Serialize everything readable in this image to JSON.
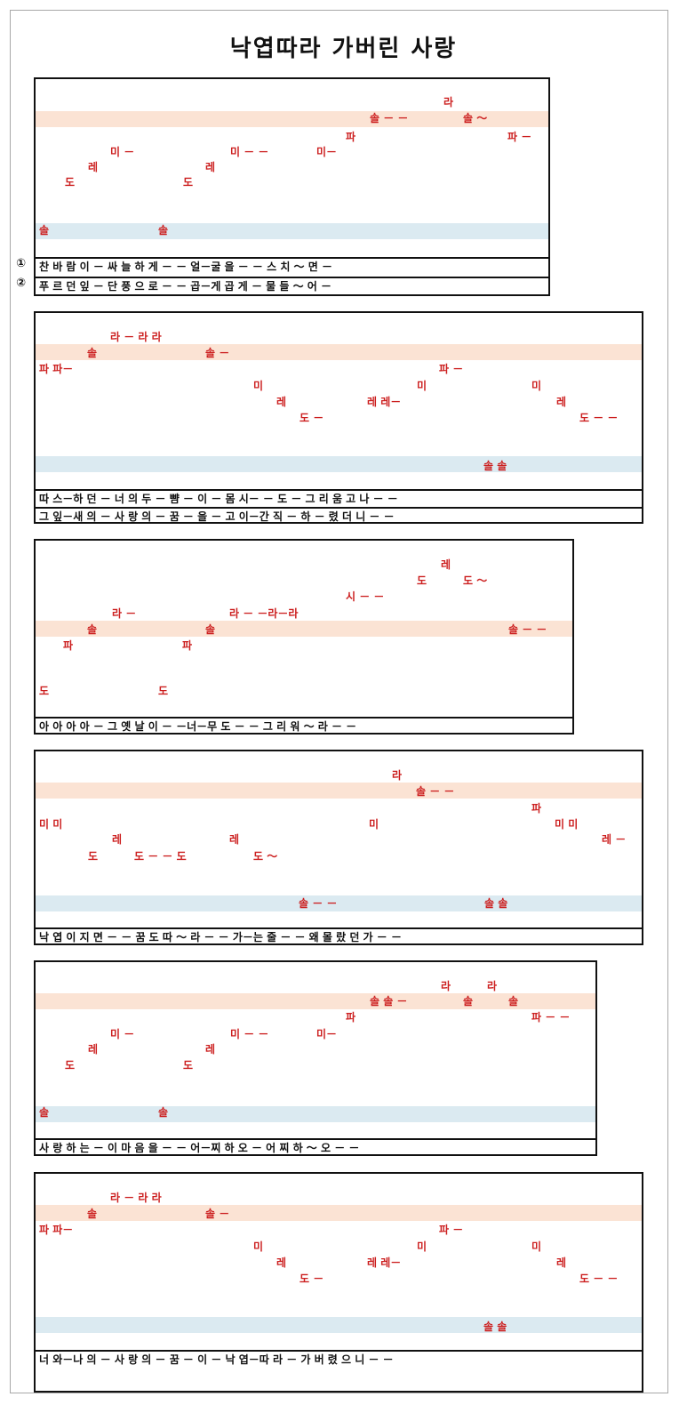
{
  "title": "낙엽따라 가버린 사랑",
  "verse_markers": [
    "①",
    "②"
  ],
  "colors": {
    "notes": "#cc1f1f",
    "upper_band": "#fbe3d4",
    "lower_band": "#dbeaf1"
  },
  "sections": [
    {
      "notes": [
        {
          "t": "라"
        },
        {
          "t": "솔 －  －"
        },
        {
          "t": "솔 ～"
        },
        {
          "t": "파"
        },
        {
          "t": "파 －"
        },
        {
          "t": "미 －"
        },
        {
          "t": "미 －  －"
        },
        {
          "t": "미－"
        },
        {
          "t": "레"
        },
        {
          "t": "레"
        },
        {
          "t": "도"
        },
        {
          "t": "도"
        },
        {
          "t": "솔"
        },
        {
          "t": "솔"
        }
      ],
      "lyrics": [
        "찬 바 람 이 － 싸 늘 하 게 － －   얼－굴 을 － － 스 치 ～ 면 －",
        "푸 르 던 잎 － 단 풍 으 로 － －   곱－게 곱 게 － 물 들 ～ 어 －"
      ]
    },
    {
      "notes": [
        {
          "t": "라 － 라 라"
        },
        {
          "t": "솔"
        },
        {
          "t": "솔 －"
        },
        {
          "t": "파 파－"
        },
        {
          "t": "파 －"
        },
        {
          "t": "미"
        },
        {
          "t": "미"
        },
        {
          "t": "미"
        },
        {
          "t": "레"
        },
        {
          "t": "레 레－"
        },
        {
          "t": "레"
        },
        {
          "t": "도 －"
        },
        {
          "t": "도 －  －"
        },
        {
          "t": "솔 솔"
        }
      ],
      "lyrics": [
        "따 스－하 던 － 너 의 두 － 뺨 － 이 －    몸 시－ － 도 － 그 리 움 고 나 － －",
        "그 잎－새 의 － 사 랑 의 － 꿈 － 을 －    고 이－간 직 － 하 － 렸 더 니 － －"
      ]
    },
    {
      "notes": [
        {
          "t": "레"
        },
        {
          "t": "도"
        },
        {
          "t": "도 ～"
        },
        {
          "t": "시 －  －"
        },
        {
          "t": "라 －"
        },
        {
          "t": "라 －  －라－라"
        },
        {
          "t": "솔"
        },
        {
          "t": "솔"
        },
        {
          "t": "솔 －  －"
        },
        {
          "t": "파"
        },
        {
          "t": "파"
        },
        {
          "t": "도"
        },
        {
          "t": "도"
        }
      ],
      "lyrics": [
        "아 아 아 아 － 그 옛 날 이 － －너－무 도 － － 그 리 워 ～ 라 － －"
      ]
    },
    {
      "notes": [
        {
          "t": "라"
        },
        {
          "t": "솔 －  －"
        },
        {
          "t": "파"
        },
        {
          "t": "미 미"
        },
        {
          "t": "미"
        },
        {
          "t": "미 미"
        },
        {
          "t": "레"
        },
        {
          "t": "레"
        },
        {
          "t": "레 －"
        },
        {
          "t": "도"
        },
        {
          "t": "도  －  －  도"
        },
        {
          "t": "도 ～"
        },
        {
          "t": "솔 －  －"
        },
        {
          "t": "솔 솔"
        }
      ],
      "lyrics": [
        "낙  엽 이 지 면 － － 꿈 도 따 ～ 라 － － 가－는 줄 － － 왜 몰 랐 던 가 － －"
      ]
    },
    {
      "notes": [
        {
          "t": "라"
        },
        {
          "t": "라"
        },
        {
          "t": "솔 솔 －"
        },
        {
          "t": "솔"
        },
        {
          "t": "솔"
        },
        {
          "t": "파"
        },
        {
          "t": "파 －  －"
        },
        {
          "t": "미 －"
        },
        {
          "t": "미 －  －"
        },
        {
          "t": "미－"
        },
        {
          "t": "레"
        },
        {
          "t": "레"
        },
        {
          "t": "도"
        },
        {
          "t": "도"
        },
        {
          "t": "솔"
        },
        {
          "t": "솔"
        }
      ],
      "lyrics": [
        "사 랑 하 는 － 이 마 음 을 － －   어－찌 하 오 － 어 찌 하 ～ 오 － －"
      ]
    },
    {
      "notes": [
        {
          "t": "라 － 라 라"
        },
        {
          "t": "솔"
        },
        {
          "t": "솔 －"
        },
        {
          "t": "파 파－"
        },
        {
          "t": "파 －"
        },
        {
          "t": "미"
        },
        {
          "t": "미"
        },
        {
          "t": "미"
        },
        {
          "t": "레"
        },
        {
          "t": "레 레－"
        },
        {
          "t": "레"
        },
        {
          "t": "도 －"
        },
        {
          "t": "도 －  －"
        },
        {
          "t": "솔 솔"
        }
      ],
      "lyrics": [
        "너 와－나 의 － 사 랑 의 － 꿈 － 이 －    낙 엽－따 라 － 가 버 렸 으 니 － －"
      ]
    }
  ]
}
